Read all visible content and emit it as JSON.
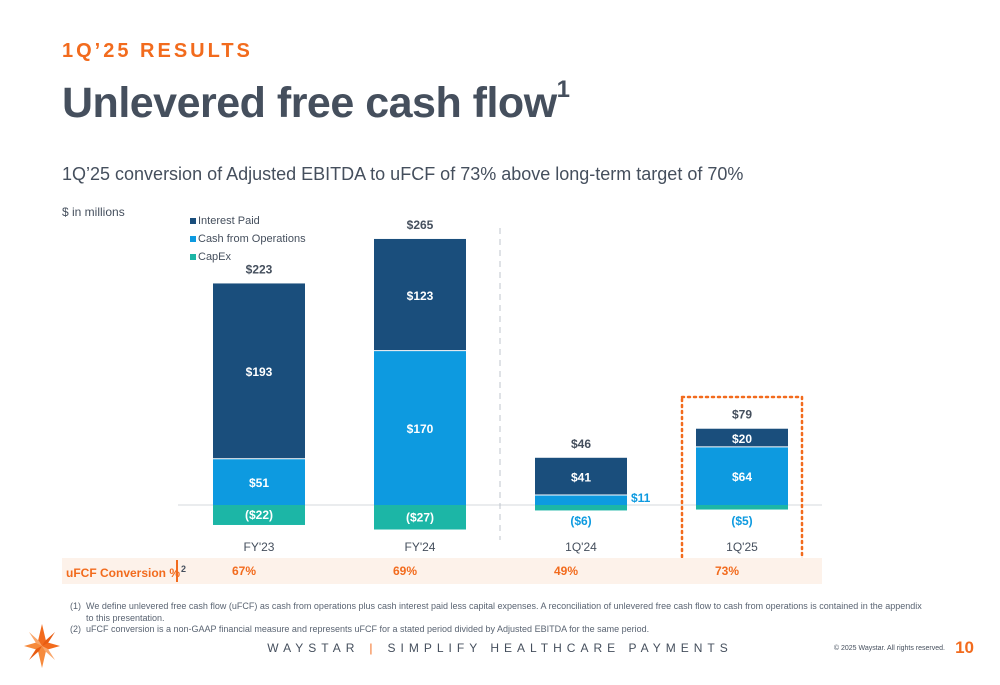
{
  "header": {
    "kicker": "1Q’25 RESULTS",
    "title": "Unlevered free cash flow",
    "title_footnote": "1",
    "subtitle": "1Q’25 conversion of Adjusted EBITDA to uFCF of 73% above long-term target of 70%",
    "units": "$ in millions"
  },
  "chart_data": {
    "type": "bar",
    "stacked": true,
    "categories": [
      "FY'23",
      "FY'24",
      "1Q'24",
      "1Q'25"
    ],
    "series": [
      {
        "name": "Interest Paid",
        "color": "#1a4e7c",
        "values": [
          193,
          123,
          41,
          20
        ],
        "labels": [
          "$193",
          "$123",
          "$41",
          "$20"
        ]
      },
      {
        "name": "Cash from Operations",
        "color": "#0d9ae0",
        "values": [
          51,
          170,
          11,
          64
        ],
        "labels": [
          "$51",
          "$170",
          "$11",
          "$64"
        ]
      },
      {
        "name": "CapEx",
        "color": "#1cb6a6",
        "values": [
          -22,
          -27,
          -6,
          -5
        ],
        "labels": [
          "($22)",
          "($27)",
          "($6)",
          "($5)"
        ]
      }
    ],
    "totals": [
      223,
      265,
      46,
      79
    ],
    "total_labels": [
      "$223",
      "$265",
      "$46",
      "$79"
    ],
    "legend_position": "top-left",
    "grid": false,
    "highlight_category": "1Q'25",
    "divider_after_category": "FY'24"
  },
  "conversion": {
    "label": "uFCF Conversion %",
    "footnote": "2",
    "values": [
      "67%",
      "69%",
      "49%",
      "73%"
    ]
  },
  "footnotes": [
    {
      "num": "(1)",
      "text": "We define unlevered free cash flow (uFCF) as cash from operations plus cash interest paid less capital expenses. A reconciliation of unlevered free cash flow to cash from operations is contained in the appendix to this presentation."
    },
    {
      "num": "(2)",
      "text": "uFCF conversion is a non-GAAP financial measure and represents uFCF for a stated period divided by Adjusted EBITDA for the same period."
    }
  ],
  "footer": {
    "brand": "WAYSTAR",
    "separator": "|",
    "tagline": "SIMPLIFY HEALTHCARE PAYMENTS",
    "copyright": "© 2025 Waystar. All rights reserved.",
    "page_number": "10"
  },
  "colors": {
    "accent": "#f26b1d",
    "text": "#454f5d"
  }
}
